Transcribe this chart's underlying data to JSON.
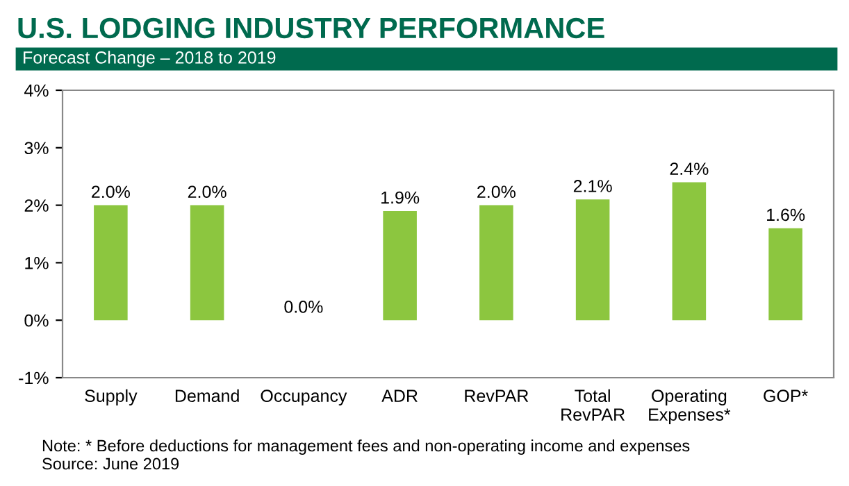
{
  "chart_data": {
    "type": "bar",
    "title": "U.S. LODGING INDUSTRY PERFORMANCE",
    "subtitle": "Forecast Change – 2018 to 2019",
    "categories": [
      "Supply",
      "Demand",
      "Occupancy",
      "ADR",
      "RevPAR",
      "Total\nRevPAR",
      "Operating\nExpenses*",
      "GOP*"
    ],
    "values": [
      2.0,
      2.0,
      0.0,
      1.9,
      2.0,
      2.1,
      2.4,
      1.6
    ],
    "value_labels": [
      "2.0%",
      "2.0%",
      "0.0%",
      "1.9%",
      "2.0%",
      "2.1%",
      "2.4%",
      "1.6%"
    ],
    "color": "#8cc63f",
    "ylim": [
      -1,
      4
    ],
    "yticks": [
      {
        "value": -1,
        "label": "-1%"
      },
      {
        "value": 0,
        "label": "0%"
      },
      {
        "value": 1,
        "label": "1%"
      },
      {
        "value": 2,
        "label": "2%"
      },
      {
        "value": 3,
        "label": "3%"
      },
      {
        "value": 4,
        "label": "4%"
      }
    ],
    "grid": false,
    "annotations": [
      "Note: * Before deductions for management fees and non-operating income and expenses",
      "Source: June 2019"
    ]
  }
}
